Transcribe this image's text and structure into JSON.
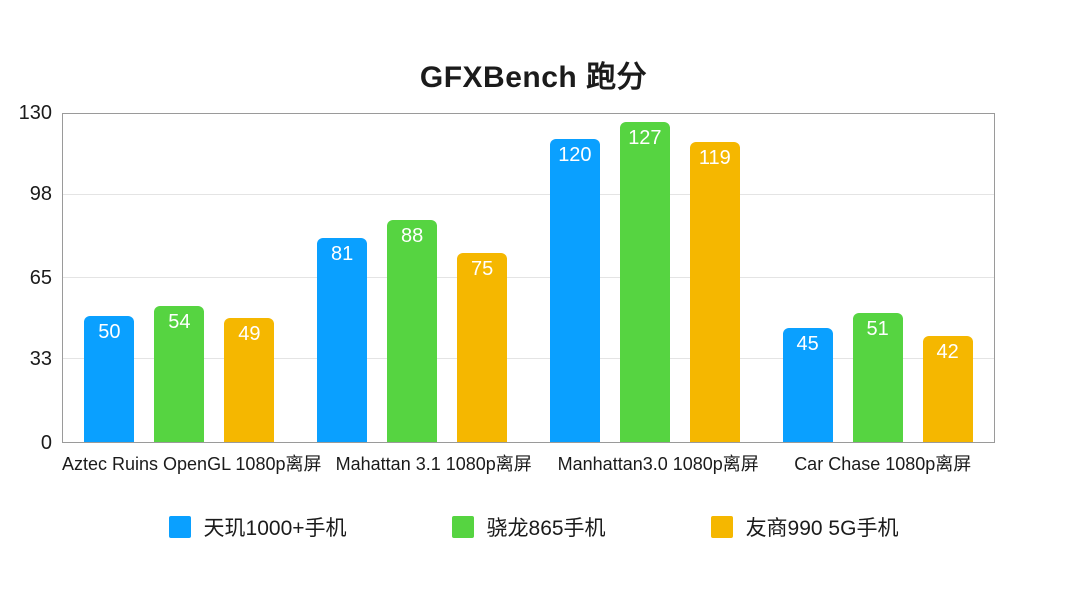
{
  "colors": {
    "background": "#ffffff",
    "plot_border": "#9a9a9a",
    "gridline": "#e4e4e4",
    "text": "#1b1b1b",
    "value_label_text": "#ffffff"
  },
  "chart_data": {
    "type": "bar",
    "title": "GFXBench 跑分",
    "categories": [
      "Aztec Ruins OpenGL 1080p离屏",
      "Mahattan 3.1 1080p离屏",
      "Manhattan3.0 1080p离屏",
      "Car Chase 1080p离屏"
    ],
    "series": [
      {
        "name": "天玑1000+手机",
        "color": "#0aa0ff",
        "values": [
          50,
          81,
          120,
          45
        ]
      },
      {
        "name": "骁龙865手机",
        "color": "#56d441",
        "values": [
          54,
          88,
          127,
          51
        ]
      },
      {
        "name": "友商990 5G手机",
        "color": "#f5b700",
        "values": [
          49,
          75,
          119,
          42
        ]
      }
    ],
    "xlabel": "",
    "ylabel": "",
    "ylim": [
      0,
      130
    ],
    "yticks": [
      0,
      33,
      65,
      98,
      130
    ],
    "grid": true,
    "legend_position": "bottom",
    "value_labels": "inside-top-white"
  }
}
